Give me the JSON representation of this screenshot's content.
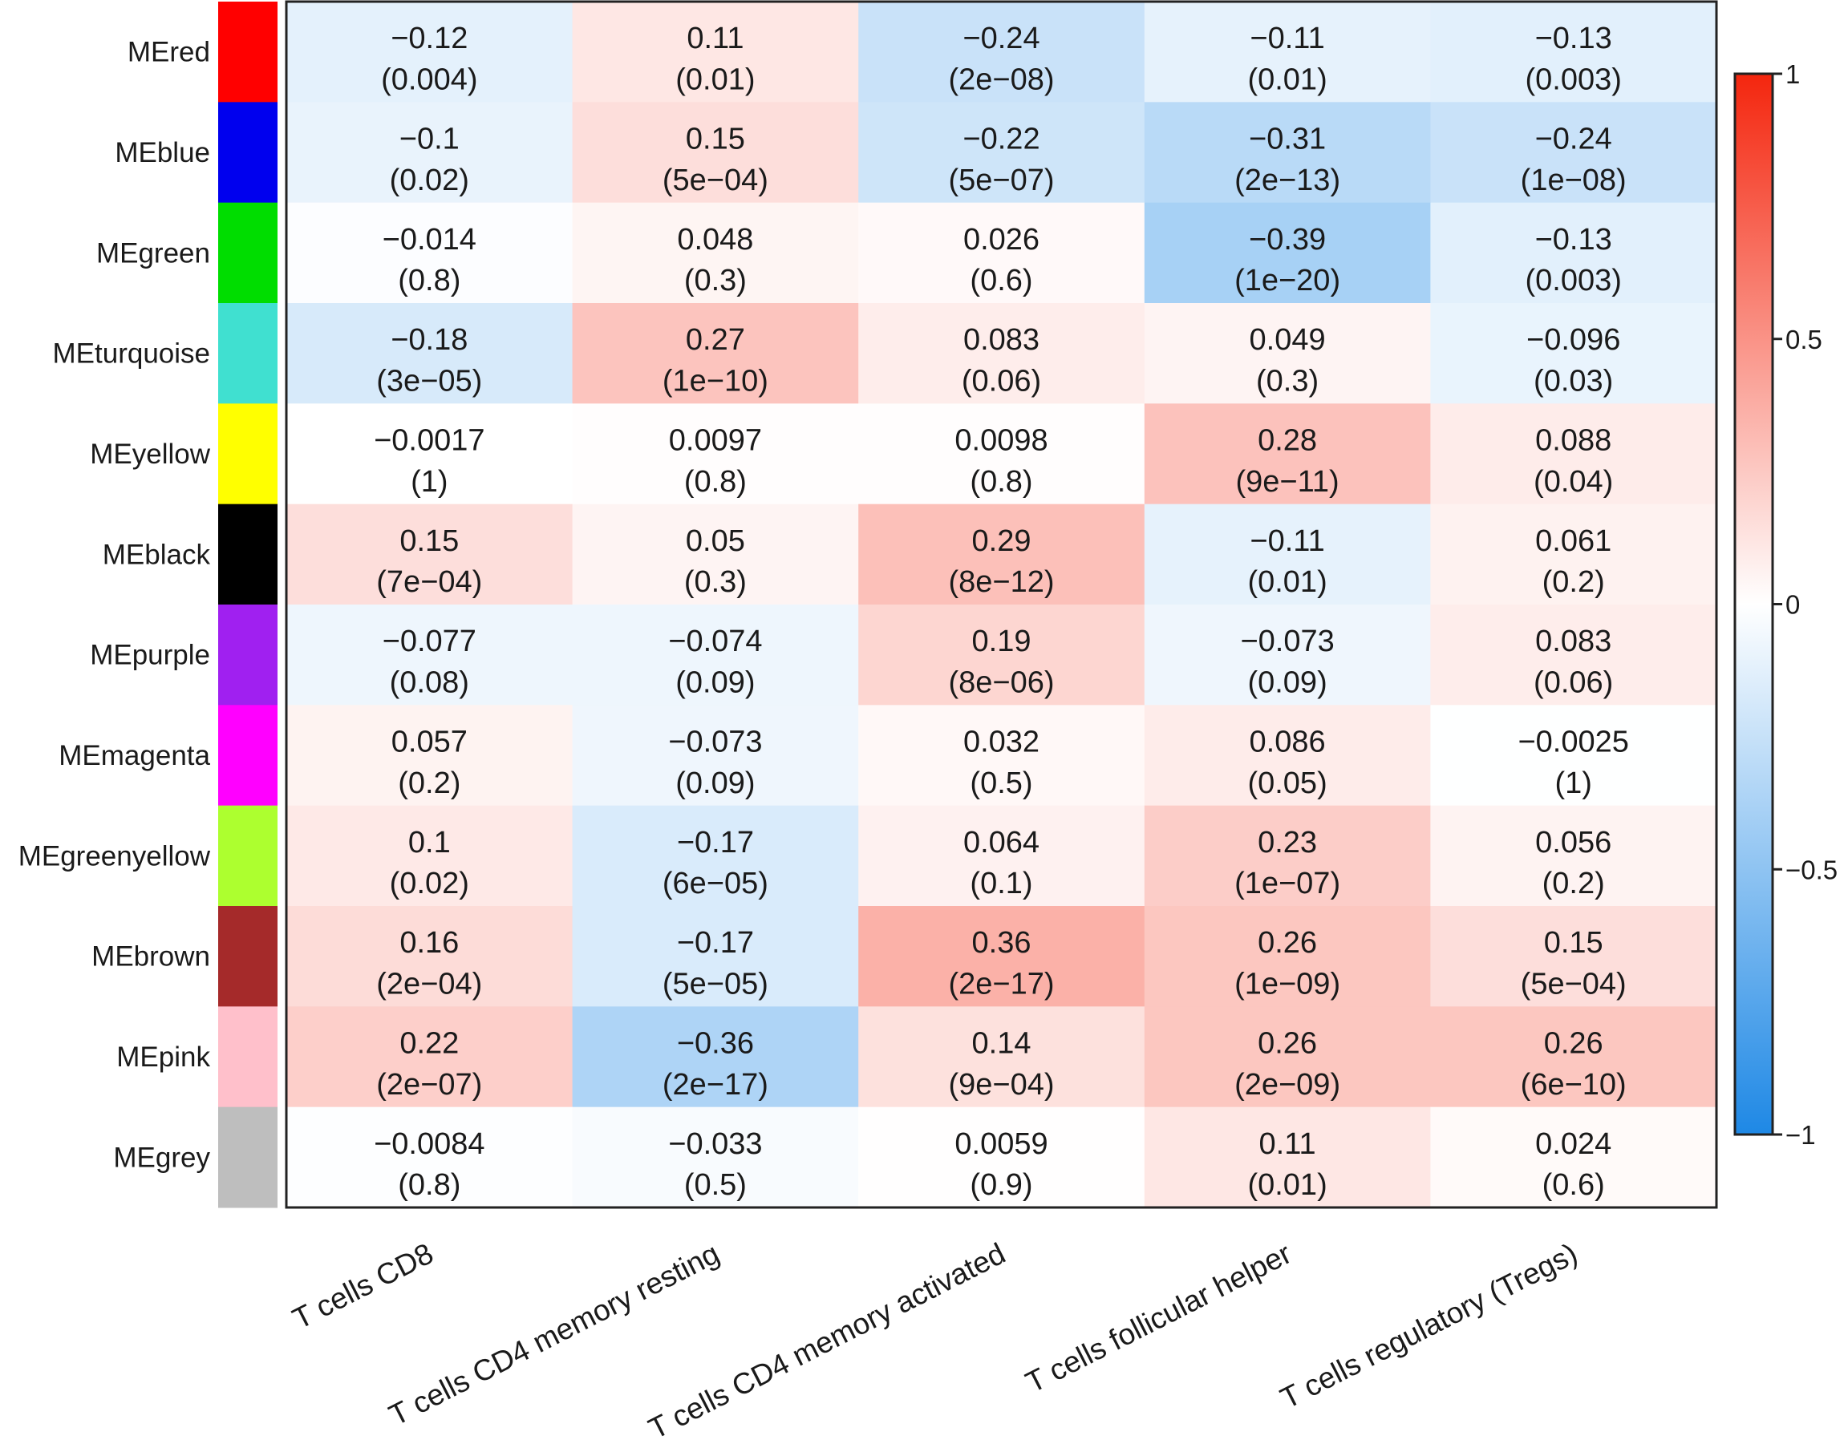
{
  "chart_data": {
    "type": "heatmap",
    "title": "",
    "xlabel": "",
    "ylabel": "",
    "rows": [
      {
        "label": "MEred",
        "color": "#FF0000"
      },
      {
        "label": "MEblue",
        "color": "#0000EE"
      },
      {
        "label": "MEgreen",
        "color": "#00DD00"
      },
      {
        "label": "MEturquoise",
        "color": "#40E0D0"
      },
      {
        "label": "MEyellow",
        "color": "#FFFF00"
      },
      {
        "label": "MEblack",
        "color": "#000000"
      },
      {
        "label": "MEpurple",
        "color": "#A020F0"
      },
      {
        "label": "MEmagenta",
        "color": "#FF00FF"
      },
      {
        "label": "MEgreenyellow",
        "color": "#ADFF2F"
      },
      {
        "label": "MEbrown",
        "color": "#A52A2A"
      },
      {
        "label": "MEpink",
        "color": "#FFC0CB"
      },
      {
        "label": "MEgrey",
        "color": "#BEBEBE"
      }
    ],
    "columns": [
      "T cells CD8",
      "T cells CD4 memory resting",
      "T cells CD4 memory activated",
      "T cells follicular helper",
      "T cells regulatory (Tregs)"
    ],
    "r_labels": [
      [
        "−0.12",
        "0.11",
        "−0.24",
        "−0.11",
        "−0.13"
      ],
      [
        "−0.1",
        "0.15",
        "−0.22",
        "−0.31",
        "−0.24"
      ],
      [
        "−0.014",
        "0.048",
        "0.026",
        "−0.39",
        "−0.13"
      ],
      [
        "−0.18",
        "0.27",
        "0.083",
        "0.049",
        "−0.096"
      ],
      [
        "−0.0017",
        "0.0097",
        "0.0098",
        "0.28",
        "0.088"
      ],
      [
        "0.15",
        "0.05",
        "0.29",
        "−0.11",
        "0.061"
      ],
      [
        "−0.077",
        "−0.074",
        "0.19",
        "−0.073",
        "0.083"
      ],
      [
        "0.057",
        "−0.073",
        "0.032",
        "0.086",
        "−0.0025"
      ],
      [
        "0.1",
        "−0.17",
        "0.064",
        "0.23",
        "0.056"
      ],
      [
        "0.16",
        "−0.17",
        "0.36",
        "0.26",
        "0.15"
      ],
      [
        "0.22",
        "−0.36",
        "0.14",
        "0.26",
        "0.26"
      ],
      [
        "−0.0084",
        "−0.033",
        "0.0059",
        "0.11",
        "0.024"
      ]
    ],
    "r_values": [
      [
        -0.12,
        0.11,
        -0.24,
        -0.11,
        -0.13
      ],
      [
        -0.1,
        0.15,
        -0.22,
        -0.31,
        -0.24
      ],
      [
        -0.014,
        0.048,
        0.026,
        -0.39,
        -0.13
      ],
      [
        -0.18,
        0.27,
        0.083,
        0.049,
        -0.096
      ],
      [
        -0.0017,
        0.0097,
        0.0098,
        0.28,
        0.088
      ],
      [
        0.15,
        0.05,
        0.29,
        -0.11,
        0.061
      ],
      [
        -0.077,
        -0.074,
        0.19,
        -0.073,
        0.083
      ],
      [
        0.057,
        -0.073,
        0.032,
        0.086,
        -0.0025
      ],
      [
        0.1,
        -0.17,
        0.064,
        0.23,
        0.056
      ],
      [
        0.16,
        -0.17,
        0.36,
        0.26,
        0.15
      ],
      [
        0.22,
        -0.36,
        0.14,
        0.26,
        0.26
      ],
      [
        -0.0084,
        -0.033,
        0.0059,
        0.11,
        0.024
      ]
    ],
    "p_labels": [
      [
        "(0.004)",
        "(0.01)",
        "(2e−08)",
        "(0.01)",
        "(0.003)"
      ],
      [
        "(0.02)",
        "(5e−04)",
        "(5e−07)",
        "(2e−13)",
        "(1e−08)"
      ],
      [
        "(0.8)",
        "(0.3)",
        "(0.6)",
        "(1e−20)",
        "(0.003)"
      ],
      [
        "(3e−05)",
        "(1e−10)",
        "(0.06)",
        "(0.3)",
        "(0.03)"
      ],
      [
        "(1)",
        "(0.8)",
        "(0.8)",
        "(9e−11)",
        "(0.04)"
      ],
      [
        "(7e−04)",
        "(0.3)",
        "(8e−12)",
        "(0.01)",
        "(0.2)"
      ],
      [
        "(0.08)",
        "(0.09)",
        "(8e−06)",
        "(0.09)",
        "(0.06)"
      ],
      [
        "(0.2)",
        "(0.09)",
        "(0.5)",
        "(0.05)",
        "(1)"
      ],
      [
        "(0.02)",
        "(6e−05)",
        "(0.1)",
        "(1e−07)",
        "(0.2)"
      ],
      [
        "(2e−04)",
        "(5e−05)",
        "(2e−17)",
        "(1e−09)",
        "(5e−04)"
      ],
      [
        "(2e−07)",
        "(2e−17)",
        "(9e−04)",
        "(2e−09)",
        "(6e−10)"
      ],
      [
        "(0.8)",
        "(0.5)",
        "(0.9)",
        "(0.01)",
        "(0.6)"
      ]
    ],
    "colorbar": {
      "range": [
        -1,
        1
      ],
      "ticks": [
        {
          "value": 1,
          "label": "1"
        },
        {
          "value": 0.5,
          "label": "0.5"
        },
        {
          "value": 0,
          "label": "0"
        },
        {
          "value": -0.5,
          "label": "−0.5"
        },
        {
          "value": -1,
          "label": "−1"
        }
      ],
      "low_color": "#1E88E5",
      "mid_color": "#FFFFFF",
      "high_color": "#F4260E"
    }
  }
}
